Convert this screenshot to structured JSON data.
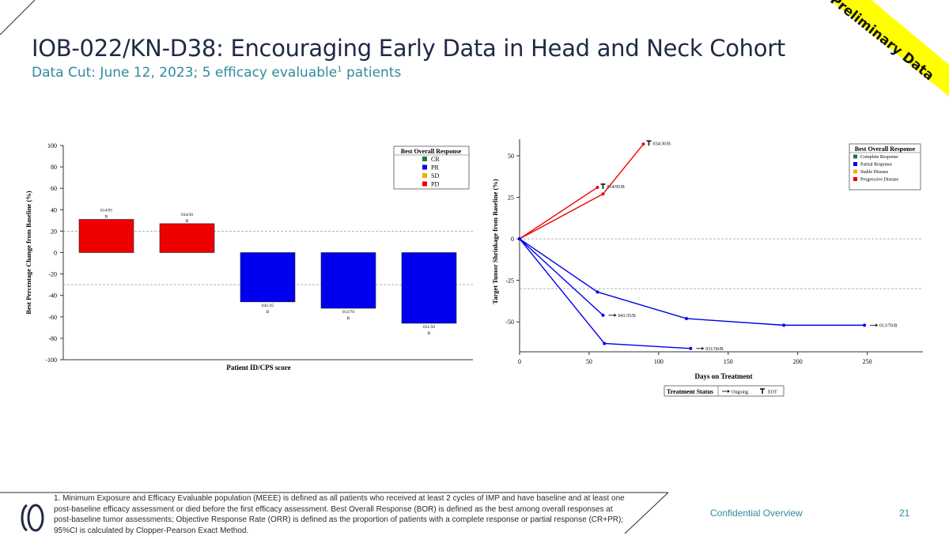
{
  "header": {
    "title": "IOB-022/KN-D38: Encouraging Early Data in Head and Neck Cohort",
    "subtitle_pre": "Data Cut: June 12, 2023; 5 efficacy evaluable",
    "subtitle_sup": "1",
    "subtitle_post": " patients"
  },
  "banner": {
    "text": "Preliminary Data",
    "color": "#ffff00"
  },
  "colors": {
    "cr": "#1a7a3a",
    "pr": "#0000ee",
    "sd": "#e8b000",
    "pd": "#ee0000",
    "accent": "#2f8a9f",
    "navy": "#1f2a44"
  },
  "chart_data": [
    {
      "type": "bar",
      "title": "",
      "xlabel": "Patient ID/CPS score",
      "ylabel": "Best Percentage Change from Baseline (%)",
      "ylim": [
        -100,
        100
      ],
      "yticks": [
        "100",
        "80",
        "60",
        "40",
        "20",
        "0",
        "-20",
        "-40",
        "-60",
        "-80",
        "-100"
      ],
      "reference_lines": [
        20,
        -30
      ],
      "legend": {
        "title": "Best Overall Response",
        "items": [
          "CR",
          "PR",
          "SD",
          "PD"
        ],
        "position": "top-right"
      },
      "bars": [
        {
          "id": "014/95",
          "suffix": "B",
          "value": 31,
          "response": "PD"
        },
        {
          "id": "034/30",
          "suffix": "B",
          "value": 27,
          "response": "PD"
        },
        {
          "id": "041/35",
          "suffix": "B",
          "value": -46,
          "response": "PR"
        },
        {
          "id": "013/70",
          "suffix": "B",
          "value": -52,
          "response": "PR"
        },
        {
          "id": "031/50",
          "suffix": "B",
          "value": -66,
          "response": "PR"
        }
      ]
    },
    {
      "type": "line",
      "title": "",
      "xlabel": "Days on Treatment",
      "ylabel": "Target Tumor Shrinkage from Baseline (%)",
      "xlim": [
        0,
        290
      ],
      "ylim": [
        -68,
        60
      ],
      "xticks": [
        "0",
        "50",
        "100",
        "150",
        "200",
        "250"
      ],
      "yticks": [
        "50",
        "25",
        "0",
        "-25",
        "-50"
      ],
      "reference_lines": [
        0,
        -30
      ],
      "legend": {
        "title": "Best Overall Response",
        "items": [
          "Complete Response",
          "Partial Response",
          "Stable Disease",
          "Progressive Disease"
        ],
        "position": "top-right"
      },
      "status_legend": {
        "title": "Treatment Status",
        "ongoing": "Ongoing",
        "eot": "EOT"
      },
      "series": [
        {
          "name": "034/30/B",
          "response": "PD",
          "status": "EOT",
          "x": [
            0,
            60,
            89
          ],
          "y": [
            0,
            27,
            57
          ]
        },
        {
          "name": "014/95/B",
          "response": "PD",
          "status": "EOT",
          "x": [
            0,
            56
          ],
          "y": [
            0,
            31
          ]
        },
        {
          "name": "041/35/B",
          "response": "PR",
          "status": "Ongoing",
          "x": [
            0,
            60
          ],
          "y": [
            0,
            -46
          ]
        },
        {
          "name": "013/70/B",
          "response": "PR",
          "status": "Ongoing",
          "x": [
            0,
            56,
            120,
            190,
            248
          ],
          "y": [
            0,
            -32,
            -48,
            -52,
            -52
          ]
        },
        {
          "name": "031/50/B",
          "response": "PR",
          "status": "Ongoing",
          "x": [
            0,
            61,
            123
          ],
          "y": [
            0,
            -63,
            -66
          ]
        }
      ]
    }
  ],
  "footer": {
    "footnote_num": "1.",
    "footnote": " Minimum Exposure and Efficacy Evaluable population (MEEE) is defined as all patients who received at least 2 cycles of IMP and have baseline and at least one post-baseline efficacy assessment or died before the first efficacy assessment. Best Overall Response (BOR) is defined as the best among overall responses at post-baseline tumor assessments; Objective Response Rate (ORR) is defined as the proportion of patients with a complete response or partial response (CR+PR); 95%CI is calculated by Clopper-Pearson Exact Method.",
    "confidential": "Confidential Overview",
    "page": "21"
  }
}
